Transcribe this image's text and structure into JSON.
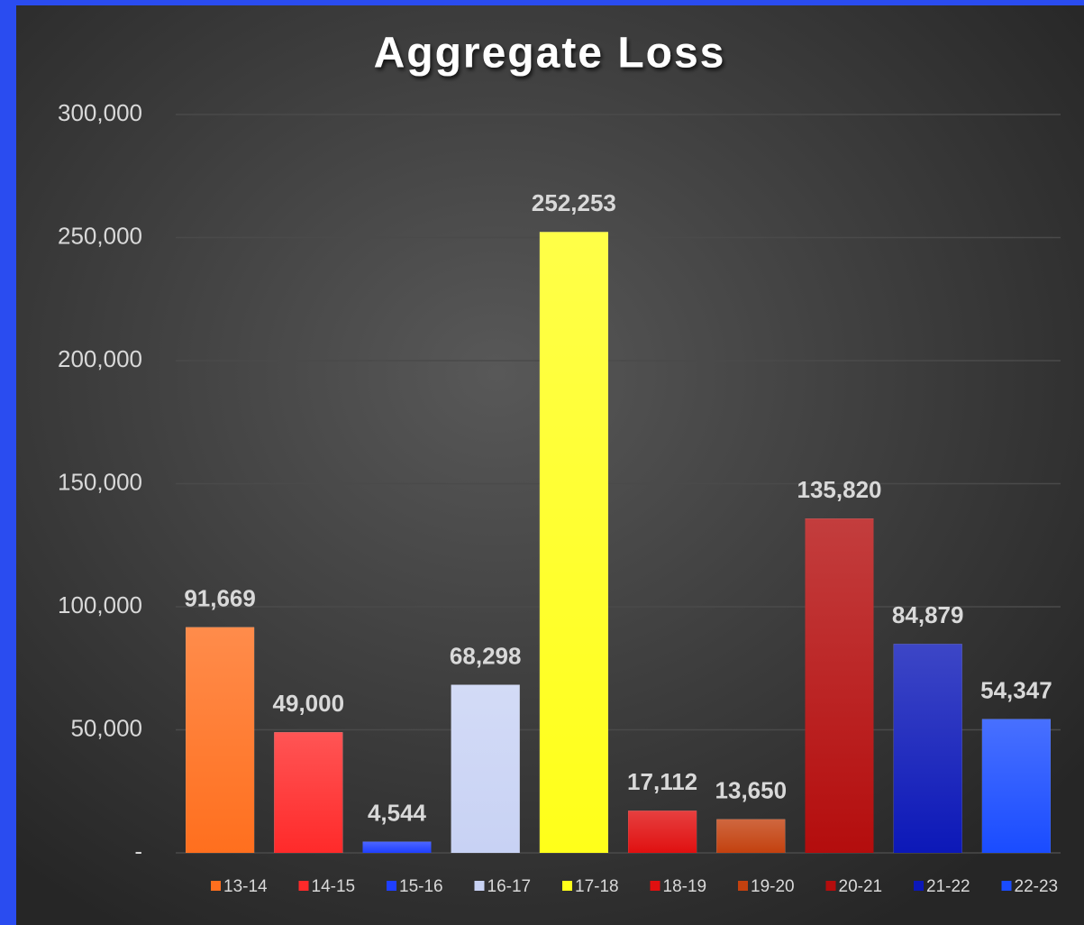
{
  "chart_data": {
    "type": "bar",
    "title": "Aggregate Loss",
    "categories": [
      "13-14",
      "14-15",
      "15-16",
      "16-17",
      "17-18",
      "18-19",
      "19-20",
      "20-21",
      "21-22",
      "22-23"
    ],
    "values": [
      91669,
      49000,
      4544,
      68298,
      252253,
      17112,
      13650,
      135820,
      84879,
      54347
    ],
    "value_labels": [
      "91,669",
      "49,000",
      "4,544",
      "68,298",
      "252,253",
      "17,112",
      "13,650",
      "135,820",
      "84,879",
      "54,347"
    ],
    "colors": [
      "#ff6f1e",
      "#ff2a2a",
      "#1f3fff",
      "#c8d2f4",
      "#ffff1a",
      "#e01010",
      "#c3410f",
      "#b40d0d",
      "#0c18b8",
      "#1a4cff"
    ],
    "ylim": [
      0,
      300000
    ],
    "yticks": [
      {
        "value": 0,
        "label": "-"
      },
      {
        "value": 50000,
        "label": "50,000"
      },
      {
        "value": 100000,
        "label": "100,000"
      },
      {
        "value": 150000,
        "label": "150,000"
      },
      {
        "value": 200000,
        "label": "200,000"
      },
      {
        "value": 250000,
        "label": "250,000"
      },
      {
        "value": 300000,
        "label": "300,000"
      }
    ],
    "grid": true,
    "legend": "bottom"
  }
}
